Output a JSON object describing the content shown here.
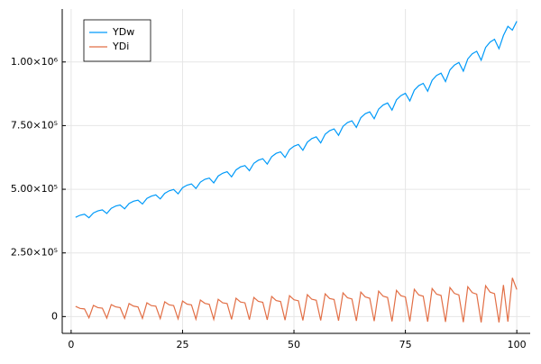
{
  "chart_data": {
    "type": "line",
    "x": [
      1,
      2,
      3,
      4,
      5,
      6,
      7,
      8,
      9,
      10,
      11,
      12,
      13,
      14,
      15,
      16,
      17,
      18,
      19,
      20,
      21,
      22,
      23,
      24,
      25,
      26,
      27,
      28,
      29,
      30,
      31,
      32,
      33,
      34,
      35,
      36,
      37,
      38,
      39,
      40,
      41,
      42,
      43,
      44,
      45,
      46,
      47,
      48,
      49,
      50,
      51,
      52,
      53,
      54,
      55,
      56,
      57,
      58,
      59,
      60,
      61,
      62,
      63,
      64,
      65,
      66,
      67,
      68,
      69,
      70,
      71,
      72,
      73,
      74,
      75,
      76,
      77,
      78,
      79,
      80,
      81,
      82,
      83,
      84,
      85,
      86,
      87,
      88,
      89,
      90,
      91,
      92,
      93,
      94,
      95,
      96,
      97,
      98,
      99,
      100
    ],
    "series": [
      {
        "name": "YDw",
        "color": "#009af9",
        "values": [
          390000,
          398000,
          402000,
          388000,
          407000,
          415000,
          419000,
          405000,
          425000,
          434000,
          438000,
          423000,
          444000,
          453000,
          457000,
          442000,
          464000,
          473000,
          478000,
          462000,
          484000,
          494000,
          499000,
          482000,
          506000,
          516000,
          521000,
          503000,
          528000,
          539000,
          544000,
          525000,
          552000,
          563000,
          569000,
          549000,
          576000,
          588000,
          593000,
          573000,
          602000,
          614000,
          620000,
          599000,
          628000,
          641000,
          647000,
          625000,
          656000,
          669000,
          676000,
          653000,
          685000,
          699000,
          706000,
          682000,
          716000,
          730000,
          737000,
          712000,
          747000,
          762000,
          769000,
          743000,
          781000,
          797000,
          804000,
          777000,
          815000,
          831000,
          839000,
          811000,
          851000,
          868000,
          877000,
          847000,
          889000,
          907000,
          916000,
          885000,
          928000,
          947000,
          956000,
          923000,
          969000,
          988000,
          998000,
          964000,
          1012000,
          1032000,
          1042000,
          1007000,
          1057000,
          1078000,
          1089000,
          1052000,
          1104000,
          1140000,
          1125000,
          1160000
        ]
      },
      {
        "name": "YDi",
        "color": "#e26f46",
        "values": [
          40000,
          32000,
          30000,
          -5000,
          44000,
          35000,
          33000,
          -6000,
          47000,
          38000,
          35000,
          -7000,
          51000,
          41000,
          38000,
          -7000,
          54000,
          43000,
          41000,
          -8000,
          58000,
          46000,
          43000,
          -9000,
          61000,
          49000,
          46000,
          -10000,
          65000,
          52000,
          48000,
          -11000,
          68000,
          54000,
          51000,
          -11000,
          72000,
          57000,
          54000,
          -12000,
          75000,
          60000,
          56000,
          -13000,
          79000,
          63000,
          59000,
          -14000,
          82000,
          66000,
          62000,
          -15000,
          86000,
          68000,
          64000,
          -15000,
          89000,
          71000,
          67000,
          -16000,
          93000,
          74000,
          69000,
          -17000,
          96000,
          77000,
          72000,
          -18000,
          100000,
          80000,
          75000,
          -19000,
          103000,
          82000,
          77000,
          -19000,
          107000,
          85000,
          80000,
          -20000,
          110000,
          88000,
          83000,
          -21000,
          114000,
          91000,
          85000,
          -22000,
          117000,
          94000,
          88000,
          -23000,
          121000,
          96000,
          90000,
          -23000,
          124000,
          -20000,
          152000,
          106000
        ]
      }
    ],
    "xlim": [
      -2,
      103
    ],
    "xticks": [
      0,
      25,
      50,
      75,
      100
    ],
    "ylim": [
      -66000,
      1208000
    ],
    "yticks": [
      0,
      {
        "value": 250000,
        "label": "2.50×10⁵"
      },
      {
        "value": 500000,
        "label": "5.00×10⁵"
      },
      {
        "value": 750000,
        "label": "7.50×10⁵"
      },
      {
        "value": 1000000,
        "label": "1.00×10⁶"
      }
    ],
    "grid": true,
    "legend": "top-left"
  }
}
